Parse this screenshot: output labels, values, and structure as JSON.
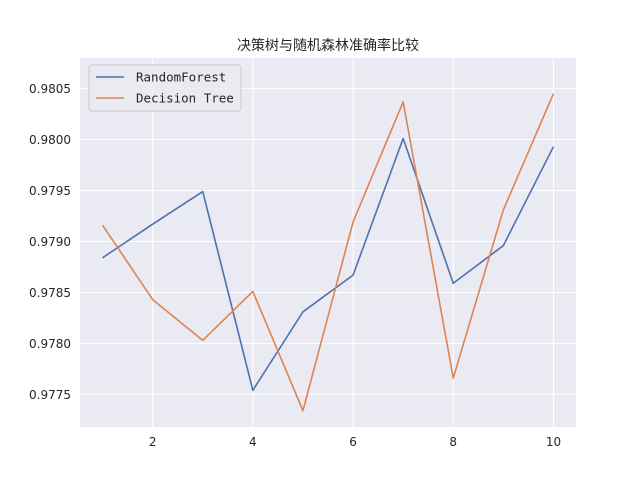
{
  "chart_data": {
    "type": "line",
    "title": "决策树与随机森林准确率比较",
    "xlabel": "",
    "ylabel": "",
    "x": [
      1,
      2,
      3,
      4,
      5,
      6,
      7,
      8,
      9,
      10
    ],
    "xlim": [
      0.55,
      10.45
    ],
    "ylim": [
      0.97718,
      0.9808
    ],
    "xticks": [
      2,
      4,
      6,
      8,
      10
    ],
    "yticks": [
      0.9775,
      0.978,
      0.9785,
      0.979,
      0.9795,
      0.98,
      0.9805
    ],
    "ytick_labels": [
      "0.9775",
      "0.9780",
      "0.9785",
      "0.9790",
      "0.9795",
      "0.9800",
      "0.9805"
    ],
    "grid": true,
    "legend_position": "upper-left",
    "background": "#eaeaf2",
    "series": [
      {
        "name": "RandomForest",
        "color": "#4c72b0",
        "values": [
          0.97884,
          0.97917,
          0.97949,
          0.97754,
          0.97831,
          0.97867,
          0.98001,
          0.97859,
          0.97896,
          0.97993
        ]
      },
      {
        "name": "Decision Tree",
        "color": "#dd8452",
        "values": [
          0.97916,
          0.97843,
          0.97803,
          0.97851,
          0.97734,
          0.97919,
          0.98037,
          0.97766,
          0.97931,
          0.98045
        ]
      }
    ]
  }
}
